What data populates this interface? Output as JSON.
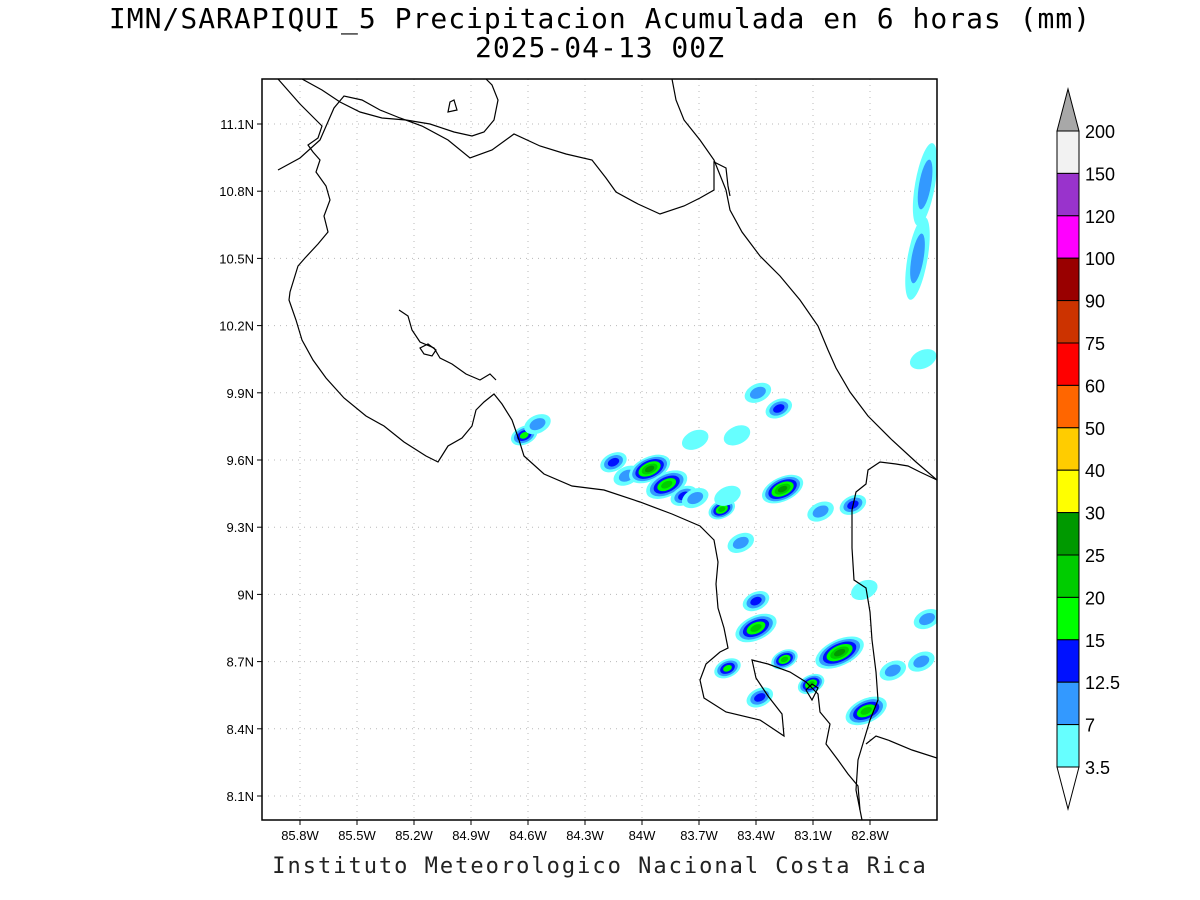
{
  "title_line1": "IMN/SARAPIQUI_5 Precipitacion Acumulada en 6 horas (mm)",
  "title_line2": "2025-04-13 00Z",
  "footer": "Instituto Meteorologico Nacional Costa Rica",
  "longitude_labels": [
    "85.8W",
    "85.5W",
    "85.2W",
    "84.9W",
    "84.6W",
    "84.3W",
    "84W",
    "83.7W",
    "83.4W",
    "83.1W",
    "82.8W"
  ],
  "latitude_labels": [
    "11.1N",
    "10.8N",
    "10.5N",
    "10.2N",
    "9.9N",
    "9.6N",
    "9.3N",
    "9N",
    "8.7N",
    "8.4N",
    "8.1N"
  ],
  "legend": {
    "unit": "mm",
    "bins": [
      {
        "label": "3.5",
        "color": "#66ffff"
      },
      {
        "label": "7",
        "color": "#3399ff"
      },
      {
        "label": "12.5",
        "color": "#0011ff"
      },
      {
        "label": "15",
        "color": "#00ff00"
      },
      {
        "label": "20",
        "color": "#00cc00"
      },
      {
        "label": "25",
        "color": "#009900"
      },
      {
        "label": "30",
        "color": "#ffff00"
      },
      {
        "label": "40",
        "color": "#ffcc00"
      },
      {
        "label": "50",
        "color": "#ff6600"
      },
      {
        "label": "60",
        "color": "#ff0000"
      },
      {
        "label": "75",
        "color": "#cc3300"
      },
      {
        "label": "90",
        "color": "#990000"
      },
      {
        "label": "100",
        "color": "#ff00ff"
      },
      {
        "label": "120",
        "color": "#9933cc"
      },
      {
        "label": "150",
        "color": "#f2f2f2"
      },
      {
        "label": "200",
        "color": "#a8a8a8"
      }
    ]
  },
  "precip_cells": [
    {
      "lon": -84.62,
      "lat": 9.71,
      "mm": 15,
      "r": "small"
    },
    {
      "lon": -84.55,
      "lat": 9.76,
      "mm": 7,
      "r": "small"
    },
    {
      "lon": -84.15,
      "lat": 9.59,
      "mm": 12.5,
      "r": "small"
    },
    {
      "lon": -84.08,
      "lat": 9.53,
      "mm": 7,
      "r": "small"
    },
    {
      "lon": -83.96,
      "lat": 9.56,
      "mm": 25,
      "r": "med"
    },
    {
      "lon": -83.87,
      "lat": 9.49,
      "mm": 20,
      "r": "med"
    },
    {
      "lon": -83.78,
      "lat": 9.44,
      "mm": 12.5,
      "r": "small"
    },
    {
      "lon": -83.72,
      "lat": 9.43,
      "mm": 7,
      "r": "small"
    },
    {
      "lon": -83.58,
      "lat": 9.38,
      "mm": 20,
      "r": "small"
    },
    {
      "lon": -83.55,
      "lat": 9.44,
      "mm": 3.5,
      "r": "small"
    },
    {
      "lon": -83.26,
      "lat": 9.47,
      "mm": 25,
      "r": "med"
    },
    {
      "lon": -83.39,
      "lat": 9.9,
      "mm": 7,
      "r": "small"
    },
    {
      "lon": -83.28,
      "lat": 9.83,
      "mm": 12.5,
      "r": "small"
    },
    {
      "lon": -83.5,
      "lat": 9.71,
      "mm": 3.5,
      "r": "small"
    },
    {
      "lon": -83.72,
      "lat": 9.69,
      "mm": 3.5,
      "r": "small"
    },
    {
      "lon": -83.06,
      "lat": 9.37,
      "mm": 7,
      "r": "small"
    },
    {
      "lon": -82.89,
      "lat": 9.4,
      "mm": 12.5,
      "r": "small"
    },
    {
      "lon": -83.48,
      "lat": 9.23,
      "mm": 7,
      "r": "small"
    },
    {
      "lon": -83.4,
      "lat": 8.97,
      "mm": 12.5,
      "r": "small"
    },
    {
      "lon": -83.4,
      "lat": 8.85,
      "mm": 20,
      "r": "med"
    },
    {
      "lon": -83.55,
      "lat": 8.67,
      "mm": 15,
      "r": "small"
    },
    {
      "lon": -83.25,
      "lat": 8.71,
      "mm": 20,
      "r": "small"
    },
    {
      "lon": -82.96,
      "lat": 8.74,
      "mm": 25,
      "r": "big"
    },
    {
      "lon": -83.11,
      "lat": 8.6,
      "mm": 20,
      "r": "small"
    },
    {
      "lon": -83.38,
      "lat": 8.54,
      "mm": 12.5,
      "r": "small"
    },
    {
      "lon": -82.82,
      "lat": 8.48,
      "mm": 20,
      "r": "med"
    },
    {
      "lon": -82.68,
      "lat": 8.66,
      "mm": 7,
      "r": "small"
    },
    {
      "lon": -82.53,
      "lat": 8.7,
      "mm": 7,
      "r": "small"
    },
    {
      "lon": -82.5,
      "lat": 8.89,
      "mm": 7,
      "r": "small"
    },
    {
      "lon": -82.83,
      "lat": 9.02,
      "mm": 3.5,
      "r": "small"
    },
    {
      "lon": -82.51,
      "lat": 10.83,
      "mm": 7,
      "r": "tall"
    },
    {
      "lon": -82.55,
      "lat": 10.5,
      "mm": 7,
      "r": "tall"
    },
    {
      "lon": -82.52,
      "lat": 10.05,
      "mm": 3.5,
      "r": "small"
    }
  ]
}
